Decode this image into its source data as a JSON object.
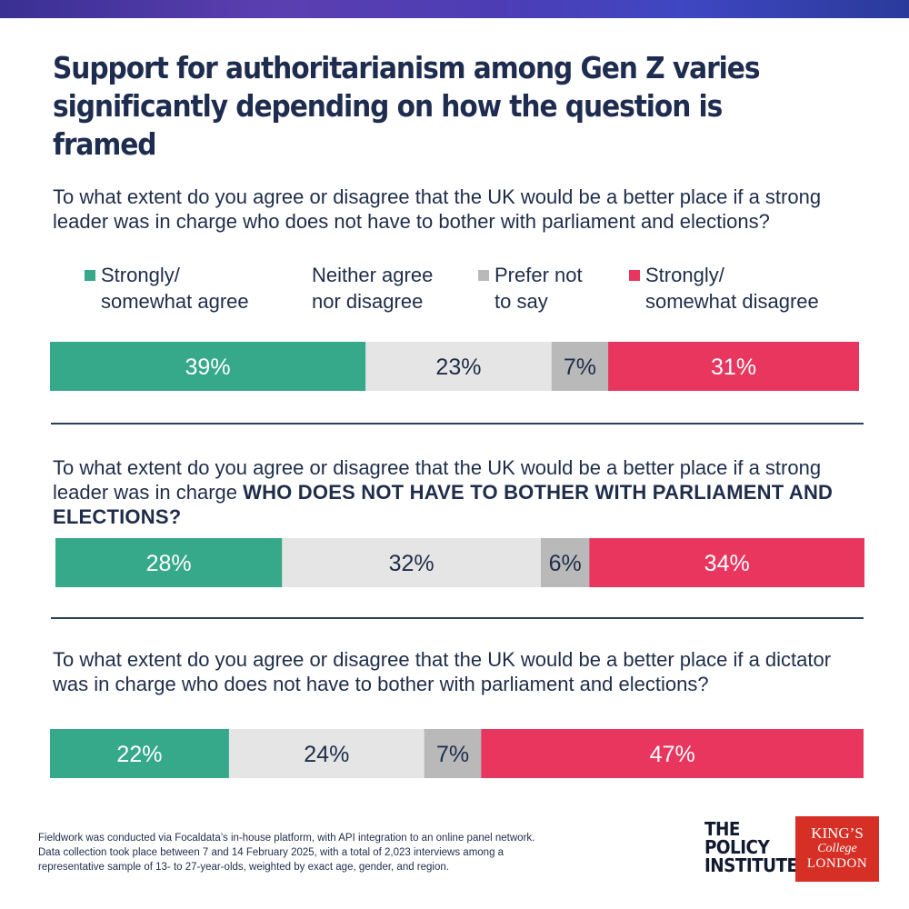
{
  "title": "Support for authoritarianism among Gen Z varies significantly depending on how the question is framed",
  "questions": [
    {
      "text": "To what extent do you agree or disagree that the UK would be a better place if a strong leader was in charge who does not have to bother with parliament and elections?"
    },
    {
      "text_before": "To what extent do you agree or disagree that the UK would be a better place if a strong leader was in charge ",
      "text_emphasis": "WHO DOES NOT HAVE TO BOTHER WITH PARLIAMENT AND ELECTIONS?"
    },
    {
      "text": "To what extent do you agree or disagree that the UK would be a better place if a dictator was in charge who does not have to bother with parliament and elections?"
    }
  ],
  "legend": [
    {
      "label": "Strongly/\nsomewhat agree",
      "color": "#36a98a"
    },
    {
      "label": "Neither agree\nnor disagree",
      "color": "#e4e5e4"
    },
    {
      "label": "Prefer not\nto say",
      "color": "#b9b9ba"
    },
    {
      "label": "Strongly/\nsomewhat disagree",
      "color": "#e8365e"
    }
  ],
  "chart_data": {
    "type": "bar",
    "orientation": "horizontal-stacked-100",
    "series": [
      {
        "name": "Strongly/ somewhat agree",
        "color": "#36a98a",
        "label_color": "#ffffff",
        "values": [
          39,
          28,
          22
        ]
      },
      {
        "name": "Neither agree nor disagree",
        "color": "#e4e5e4",
        "label_color": "#1f2d4a",
        "values": [
          23,
          32,
          24
        ]
      },
      {
        "name": "Prefer not to say",
        "color": "#b9b9ba",
        "label_color": "#1f2d4a",
        "values": [
          7,
          6,
          7
        ]
      },
      {
        "name": "Strongly/ somewhat disagree",
        "color": "#e8365e",
        "label_color": "#ffffff",
        "values": [
          31,
          34,
          47
        ]
      }
    ],
    "value_suffix": "%",
    "legend_position": "top"
  },
  "footnote": "Fieldwork was conducted via Focaldata’s in-house platform, with API integration to an online panel network. Data collection took place between 7 and 14 February 2025, with a total of 2,023 interviews among a representative sample of 13- to 27-year-olds, weighted by exact age, gender, and region.",
  "logos": {
    "policy_institute": [
      "THE",
      "POLICY",
      "INSTITUTE"
    ],
    "kings_college": [
      "KING’S",
      "College",
      "LONDON"
    ]
  }
}
